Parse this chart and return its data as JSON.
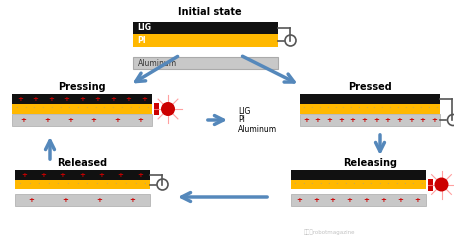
{
  "bg_color": "#ffffff",
  "title_initial": "Initial state",
  "title_pressing": "Pressing",
  "title_pressed": "Pressed",
  "title_released": "Released",
  "title_releasing": "Releasing",
  "label_lig": "LIG",
  "label_pi": "PI",
  "label_aluminum": "Aluminum",
  "black_color": "#111111",
  "gold_color": "#FFB800",
  "silver_color": "#C8C8C8",
  "red_color": "#CC0000",
  "arrow_color": "#5588BB",
  "connector_color": "#555555",
  "watermark": "微信号robotmagazine"
}
